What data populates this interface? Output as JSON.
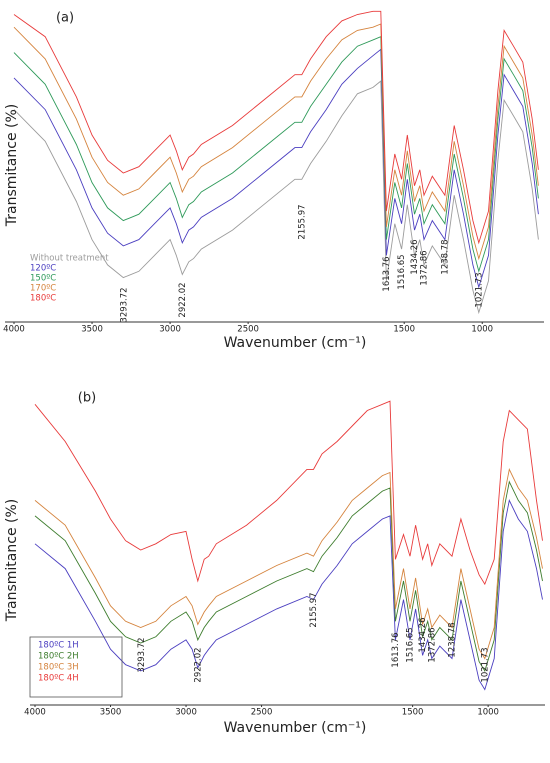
{
  "chart_data": [
    {
      "type": "line",
      "title": "(a)",
      "xlabel": "Wavenumber (cm⁻¹)",
      "ylabel": "Transmitance (%)",
      "x": [
        4000,
        3800,
        3600,
        3500,
        3400,
        3300,
        3200,
        3100,
        3000,
        2960,
        2922,
        2880,
        2850,
        2800,
        2600,
        2400,
        2200,
        2156,
        2100,
        2000,
        1900,
        1800,
        1700,
        1650,
        1614,
        1560,
        1517,
        1480,
        1434,
        1400,
        1373,
        1320,
        1239,
        1180,
        1120,
        1060,
        1022,
        960,
        900,
        860,
        800,
        740,
        680,
        640
      ],
      "xlim": [
        4000,
        630
      ],
      "xticks": [
        4000,
        3500,
        3000,
        2500,
        1500,
        1000
      ],
      "ylim": [
        0,
        100
      ],
      "legend": "lower left",
      "legend_frame": false,
      "series": [
        {
          "name": "Without treatment",
          "color": "#9c9c9c",
          "values": [
            67,
            57,
            38,
            26,
            18,
            14,
            16,
            21,
            26,
            21,
            15,
            19,
            20,
            23,
            29,
            37,
            45,
            45,
            50,
            57,
            65,
            72,
            74,
            76,
            13,
            31,
            23,
            37,
            21,
            26,
            18,
            24,
            18,
            40,
            26,
            10,
            3,
            13,
            51,
            70,
            65,
            60,
            42,
            26
          ]
        },
        {
          "name": "120ºC",
          "color": "#4b3fc0",
          "values": [
            77,
            67,
            48,
            36,
            28,
            24,
            26,
            31,
            36,
            31,
            25,
            29,
            30,
            33,
            39,
            47,
            55,
            55,
            60,
            67,
            75,
            80,
            84,
            86,
            21,
            39,
            31,
            45,
            29,
            34,
            26,
            32,
            26,
            48,
            34,
            18,
            11,
            21,
            59,
            78,
            73,
            68,
            50,
            34
          ]
        },
        {
          "name": "150ºC",
          "color": "#2f9a5a",
          "values": [
            85,
            75,
            56,
            44,
            36,
            32,
            34,
            39,
            44,
            39,
            33,
            37,
            38,
            41,
            47,
            55,
            63,
            63,
            68,
            75,
            82,
            87,
            89,
            90,
            26,
            44,
            36,
            50,
            34,
            39,
            31,
            37,
            31,
            53,
            39,
            23,
            16,
            26,
            64,
            83,
            78,
            73,
            55,
            39
          ]
        },
        {
          "name": "170ºC",
          "color": "#d5843e",
          "values": [
            93,
            83,
            64,
            52,
            44,
            40,
            42,
            47,
            52,
            47,
            41,
            45,
            46,
            49,
            55,
            63,
            71,
            71,
            76,
            83,
            89,
            92,
            93,
            94,
            30,
            48,
            40,
            54,
            38,
            43,
            35,
            41,
            35,
            57,
            43,
            27,
            20,
            30,
            68,
            87,
            82,
            77,
            59,
            43
          ]
        },
        {
          "name": "180ºC",
          "color": "#e83b3b",
          "values": [
            97,
            90,
            71,
            59,
            51,
            47,
            49,
            54,
            59,
            54,
            48,
            52,
            53,
            56,
            62,
            70,
            78,
            78,
            83,
            90,
            95,
            97,
            98,
            98,
            35,
            53,
            45,
            59,
            43,
            48,
            40,
            46,
            40,
            62,
            48,
            32,
            25,
            35,
            73,
            92,
            87,
            82,
            64,
            48
          ]
        }
      ],
      "peaks": [
        3293.72,
        2922.02,
        2155.97,
        1613.76,
        1516.65,
        1434.26,
        1372.86,
        1238.78,
        1021.73
      ]
    },
    {
      "type": "line",
      "title": "(b)",
      "xlabel": "Wavenumber (cm⁻¹)",
      "ylabel": "Transmitance (%)",
      "x": [
        4000,
        3800,
        3600,
        3500,
        3400,
        3300,
        3200,
        3100,
        3000,
        2960,
        2922,
        2880,
        2850,
        2800,
        2600,
        2400,
        2200,
        2156,
        2100,
        2000,
        1900,
        1800,
        1700,
        1650,
        1614,
        1560,
        1517,
        1480,
        1434,
        1400,
        1373,
        1320,
        1239,
        1180,
        1120,
        1060,
        1022,
        960,
        900,
        860,
        800,
        740,
        680,
        640
      ],
      "xlim": [
        4000,
        650
      ],
      "xticks": [
        4000,
        3500,
        3000,
        2500,
        1500,
        1000
      ],
      "ylim": [
        0,
        100
      ],
      "legend": "lower left",
      "legend_frame": true,
      "series": [
        {
          "name": "180ºC 1H",
          "color": "#4b3fc0",
          "values": [
            52,
            44,
            27,
            18,
            13,
            11,
            13,
            18,
            21,
            18,
            12,
            16,
            18,
            21,
            26,
            31,
            35,
            34,
            39,
            45,
            52,
            56,
            60,
            61,
            21,
            34,
            21,
            31,
            16,
            21,
            15,
            19,
            15,
            34,
            21,
            8,
            5,
            15,
            56,
            66,
            60,
            56,
            44,
            34
          ]
        },
        {
          "name": "180ºC 2H",
          "color": "#3e7d2e",
          "values": [
            61,
            53,
            36,
            27,
            22,
            20,
            22,
            27,
            30,
            27,
            21,
            25,
            27,
            30,
            35,
            40,
            44,
            43,
            48,
            54,
            61,
            65,
            69,
            70,
            27,
            40,
            27,
            37,
            22,
            27,
            21,
            25,
            21,
            40,
            27,
            14,
            11,
            21,
            62,
            72,
            66,
            62,
            50,
            40
          ]
        },
        {
          "name": "180ºC 3H",
          "color": "#d5843e",
          "values": [
            66,
            58,
            41,
            32,
            27,
            25,
            27,
            32,
            35,
            32,
            26,
            30,
            32,
            35,
            40,
            45,
            49,
            48,
            53,
            59,
            66,
            70,
            74,
            75,
            31,
            44,
            31,
            41,
            26,
            31,
            25,
            29,
            25,
            44,
            31,
            18,
            15,
            25,
            66,
            76,
            70,
            66,
            54,
            44
          ]
        },
        {
          "name": "180ºC 4H",
          "color": "#e83b3b",
          "values": [
            97,
            85,
            69,
            60,
            53,
            50,
            52,
            55,
            56,
            47,
            40,
            47,
            48,
            52,
            58,
            66,
            76,
            76,
            81,
            85,
            90,
            95,
            97,
            98,
            47,
            55,
            48,
            58,
            47,
            52,
            45,
            52,
            48,
            60,
            50,
            42,
            39,
            47,
            85,
            95,
            92,
            89,
            66,
            53
          ]
        }
      ],
      "peaks": [
        3293.72,
        2922.02,
        2155.97,
        1613.76,
        1516.65,
        1434.26,
        1372.86,
        1238.78,
        1021.73
      ]
    }
  ]
}
